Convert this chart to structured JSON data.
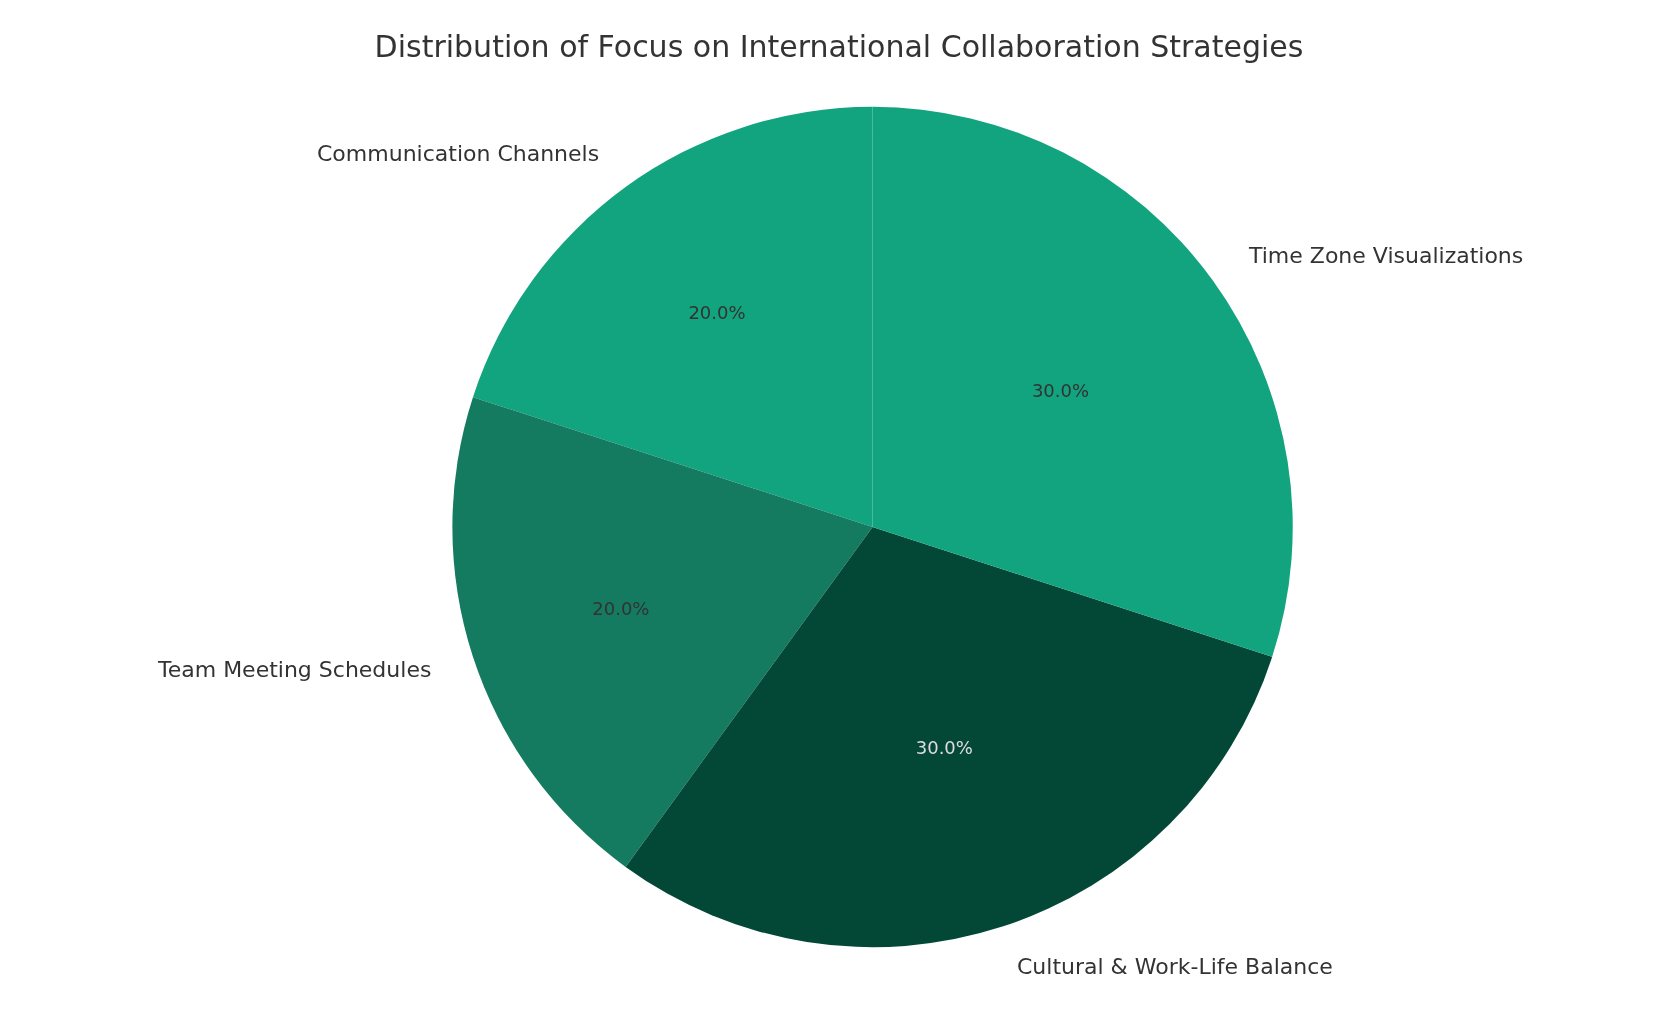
{
  "chart_data": {
    "type": "pie",
    "title": "Distribution of Focus on International Collaboration Strategies",
    "categories": [
      "Communication Channels",
      "Team Meeting Schedules",
      "Cultural & Work-Life Balance",
      "Time Zone Visualizations"
    ],
    "values": [
      20,
      20,
      30,
      30
    ],
    "colors": [
      "#12a37f",
      "#147a60",
      "#034836",
      "#12a37f"
    ],
    "value_labels": [
      "20.0%",
      "20.0%",
      "30.0%",
      "30.0%"
    ]
  }
}
